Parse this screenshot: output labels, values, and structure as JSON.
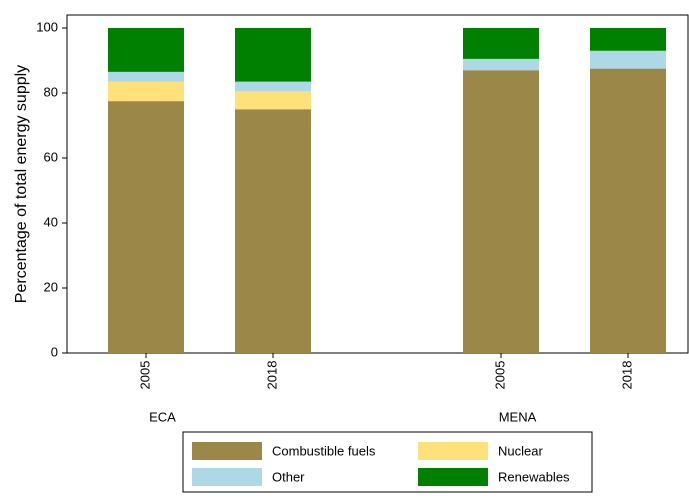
{
  "chart_data": {
    "type": "stacked-bar",
    "y_label": "Percentage of total energy supply",
    "groups": [
      {
        "name": "ECA",
        "categories": [
          "2005",
          "2018"
        ]
      },
      {
        "name": "MENA",
        "categories": [
          "2005",
          "2018"
        ]
      }
    ],
    "series": [
      {
        "name": "Combustible fuels",
        "color": "#9b8747",
        "values": [
          77.5,
          75,
          87,
          87.5
        ]
      },
      {
        "name": "Nuclear",
        "color": "#ffe17a",
        "values": [
          6,
          5.5,
          0,
          0
        ]
      },
      {
        "name": "Other",
        "color": "#add8e6",
        "values": [
          3,
          3,
          3.5,
          5.5
        ]
      },
      {
        "name": "Renewables",
        "color": "#008000",
        "values": [
          13.5,
          16.5,
          9.5,
          7
        ]
      }
    ],
    "ylim": [
      0,
      104
    ],
    "yticks": [
      0,
      20,
      40,
      60,
      80,
      100
    ],
    "grid": false,
    "legend": "bottom"
  }
}
